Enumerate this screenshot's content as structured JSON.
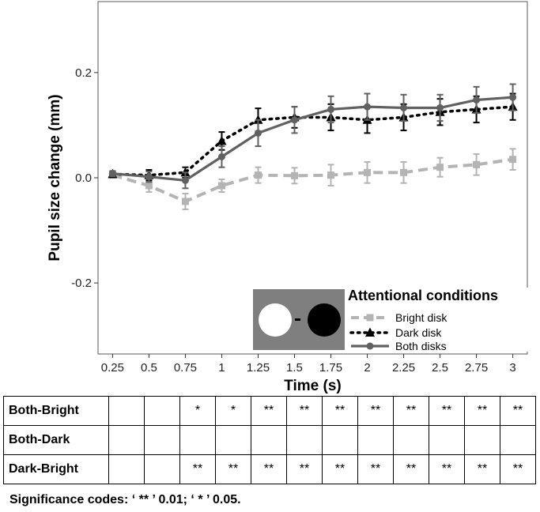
{
  "chart_data": {
    "type": "line",
    "xlabel": "Time (s)",
    "ylabel": "Pupil size change (mm)",
    "xlim": [
      0.15,
      3.1
    ],
    "ylim": [
      -0.335,
      0.335
    ],
    "x": [
      0.25,
      0.5,
      0.75,
      1,
      1.25,
      1.5,
      1.75,
      2,
      2.25,
      2.5,
      2.75,
      3
    ],
    "x_tick_labels": [
      "0.25",
      "0.5",
      "0.75",
      "1",
      "1.25",
      "1.5",
      "1.75",
      "2",
      "2.25",
      "2.5",
      "2.75",
      "3"
    ],
    "y_ticks": [
      -0.2,
      0.0,
      0.2
    ],
    "y_tick_labels": [
      "-0.2",
      "0.0",
      "0.2"
    ],
    "grid": false,
    "legend": {
      "title": "Attentional conditions",
      "placement": "bottom-right"
    },
    "series": [
      {
        "name": "Bright disk",
        "color": "#b4b4b4",
        "line_style": "dashed",
        "marker": "square",
        "values": [
          0.005,
          -0.015,
          -0.045,
          -0.015,
          0.005,
          0.004,
          0.005,
          0.01,
          0.01,
          0.02,
          0.025,
          0.035
        ],
        "errors": [
          0.005,
          0.012,
          0.015,
          0.012,
          0.015,
          0.015,
          0.02,
          0.02,
          0.02,
          0.018,
          0.02,
          0.02
        ]
      },
      {
        "name": "Dark disk",
        "color": "#000000",
        "line_style": "dotted",
        "marker": "triangle",
        "values": [
          0.007,
          0.005,
          0.01,
          0.07,
          0.11,
          0.115,
          0.115,
          0.11,
          0.115,
          0.125,
          0.13,
          0.135
        ],
        "errors": [
          0.005,
          0.01,
          0.01,
          0.017,
          0.022,
          0.02,
          0.025,
          0.025,
          0.025,
          0.025,
          0.025,
          0.025
        ]
      },
      {
        "name": "Both disks",
        "color": "#616161",
        "line_style": "solid",
        "marker": "circle",
        "values": [
          0.008,
          0.002,
          -0.005,
          0.04,
          0.085,
          0.11,
          0.13,
          0.135,
          0.133,
          0.133,
          0.148,
          0.153
        ],
        "errors": [
          0.005,
          0.01,
          0.015,
          0.02,
          0.025,
          0.025,
          0.025,
          0.025,
          0.025,
          0.025,
          0.025,
          0.025
        ]
      }
    ]
  },
  "significance_table": {
    "rows": [
      {
        "label": "Both-Bright",
        "cells": [
          "",
          "",
          "*",
          "*",
          "**",
          "**",
          "**",
          "**",
          "**",
          "**",
          "**",
          "**"
        ]
      },
      {
        "label": "Both-Dark",
        "cells": [
          "",
          "",
          "",
          "",
          "",
          "",
          "",
          "",
          "",
          "",
          "",
          ""
        ]
      },
      {
        "label": "Dark-Bright",
        "cells": [
          "",
          "",
          "**",
          "**",
          "**",
          "**",
          "**",
          "**",
          "**",
          "**",
          "**",
          "**"
        ]
      }
    ],
    "note": "Significance codes: ‘ ** ’ 0.01; ‘ * ’ 0.05."
  }
}
